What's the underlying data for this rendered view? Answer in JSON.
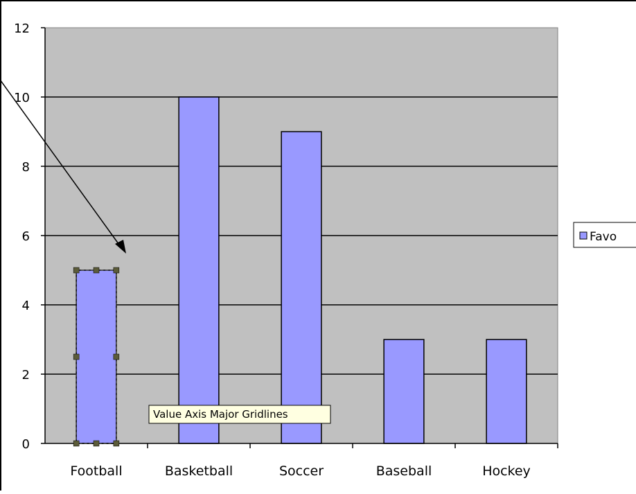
{
  "chart_data": {
    "type": "bar",
    "categories": [
      "Football",
      "Basketball",
      "Soccer",
      "Baseball",
      "Hockey"
    ],
    "series": [
      {
        "name": "Favo",
        "values": [
          5,
          10,
          9,
          3,
          3
        ]
      }
    ],
    "title": "",
    "xlabel": "",
    "ylabel": "",
    "ylim": [
      0,
      12
    ],
    "yticks": [
      0,
      2,
      4,
      6,
      8,
      10,
      12
    ],
    "grid": true,
    "legend": "right",
    "selected_category": "Football",
    "colors": {
      "plot_background": "#c0c0c0",
      "bar_fill": "#9999ff",
      "bar_stroke": "#000000",
      "gridline": "#000000",
      "tooltip_background": "#ffffe1",
      "selection_handle": "#5c5c3a"
    }
  },
  "tooltip": {
    "text": "Value Axis Major Gridlines"
  }
}
